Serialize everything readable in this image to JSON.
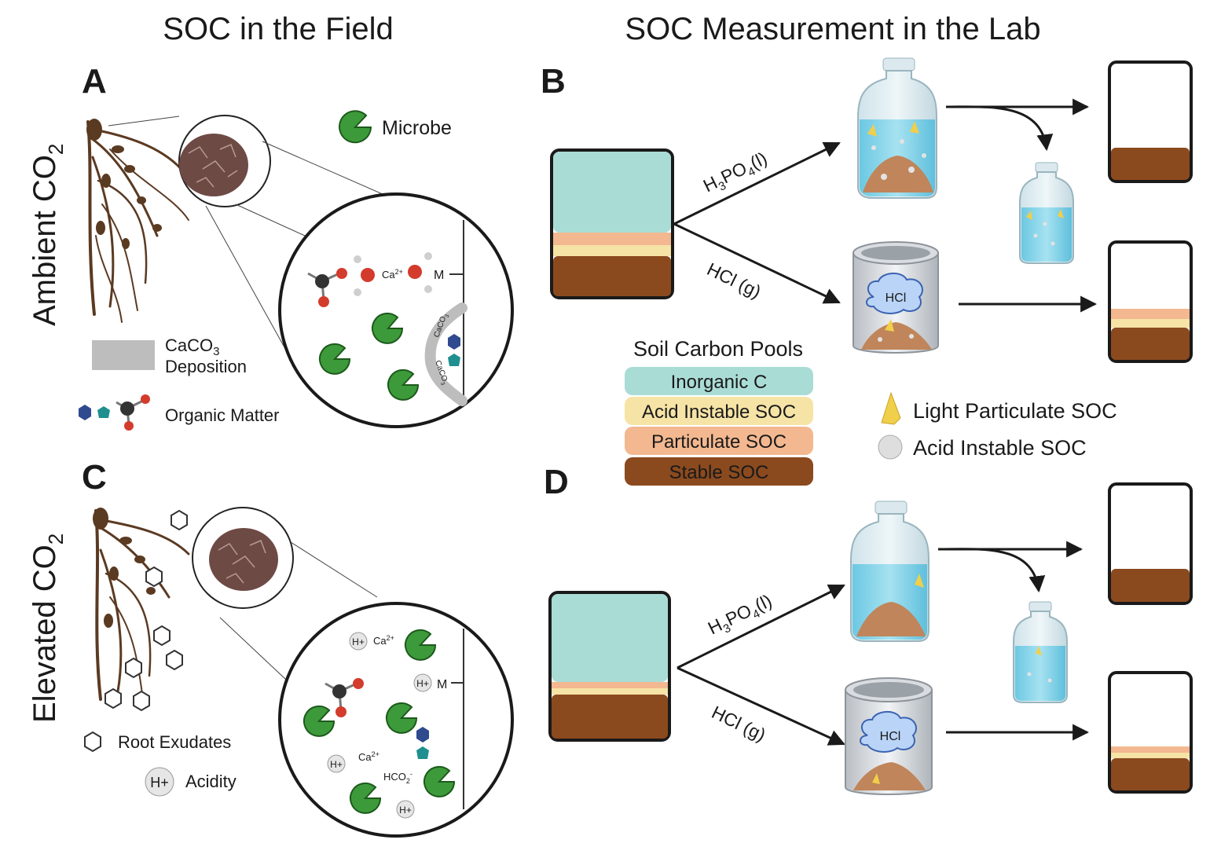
{
  "titles": {
    "field": "SOC in the Field",
    "lab": "SOC Measurement in the Lab"
  },
  "row_labels": {
    "ambient_prefix": "Ambient CO",
    "ambient_sub": "2",
    "elevated_prefix": "Elevated CO",
    "elevated_sub": "2"
  },
  "panels": {
    "a": "A",
    "b": "B",
    "c": "C",
    "d": "D"
  },
  "field_legend": {
    "microbe": "Microbe",
    "caco3_line1": "CaCO",
    "caco3_sub": "3",
    "caco3_line2": "Deposition",
    "organic_matter": "Organic Matter",
    "root_exudates": "Root Exudates",
    "acidity": "Acidity"
  },
  "chem_labels": {
    "ca": "Ca",
    "ca_sup": "2+",
    "m": "M",
    "h": "H",
    "h_plus": "H+",
    "c": "C",
    "o": "O",
    "caco3_a": "CaCO",
    "caco3_b": "CaCO",
    "caco3_sub": "3",
    "hco2": "HCO",
    "hco2_sub": "2",
    "hco2_sup": "-",
    "minus": "-"
  },
  "treatments": {
    "phosphoric_prefix": "H",
    "phosphoric_s1": "3",
    "phosphoric_mid": "PO",
    "phosphoric_s2": "4",
    "phosphoric_suffix": "(l)",
    "hcl_gas": "HCl (g)",
    "hcl_cloud": "HCl"
  },
  "soil_pools": {
    "title": "Soil Carbon Pools",
    "items": [
      {
        "label": "Inorganic C",
        "color": "#aadcd6"
      },
      {
        "label": "Acid Instable SOC",
        "color": "#f6e3a6"
      },
      {
        "label": "Particulate SOC",
        "color": "#f3b890"
      },
      {
        "label": "Stable SOC",
        "color": "#8b4a1e"
      }
    ]
  },
  "lab_legend": {
    "light_particulate": "Light Particulate SOC",
    "acid_instable": "Acid Instable SOC"
  },
  "colors": {
    "microbe": "#3d9a3a",
    "root": "#5b3a22",
    "soil_aggregate": "#6e4a45",
    "water": "#7fd0e6",
    "caco3": "#bdbdbd",
    "arrow": "#1a1a1a"
  }
}
